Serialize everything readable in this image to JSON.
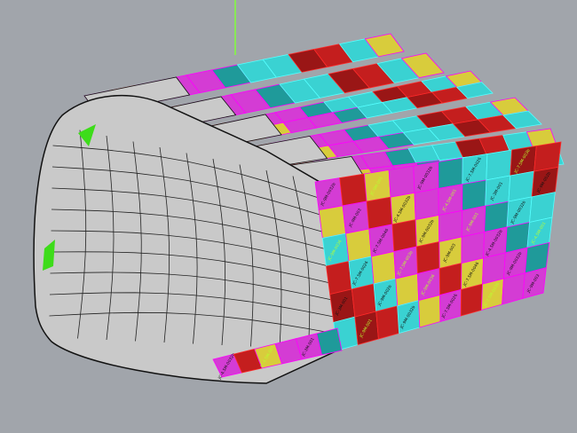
{
  "viewport": {
    "background": "#a1a5ab",
    "shell_color": "#c9c9c9",
    "edge_color": "#111111",
    "axis_color": "#7fff3a",
    "highlight_color": "#3ddc1a"
  },
  "panel_palette": {
    "magenta": "#d43cd4",
    "cyan": "#3ad2d2",
    "yellow": "#d8cc3c",
    "red": "#c41e1e",
    "dark_red": "#9a1616",
    "teal": "#1f9a9a"
  },
  "panel_labels": [
    "JC-9M-0032b",
    "JC-9M-001",
    "JC-9M-0032b",
    "JC-7.5M-0026",
    "JC-7.5M-003b",
    "JC-9M-003",
    "JC-4.5M-0032b",
    "JC-4.5M-001",
    "JC-3M-001",
    "JC-9M-002b",
    "JC-9M-0036",
    "JC-7.5M-0046"
  ]
}
